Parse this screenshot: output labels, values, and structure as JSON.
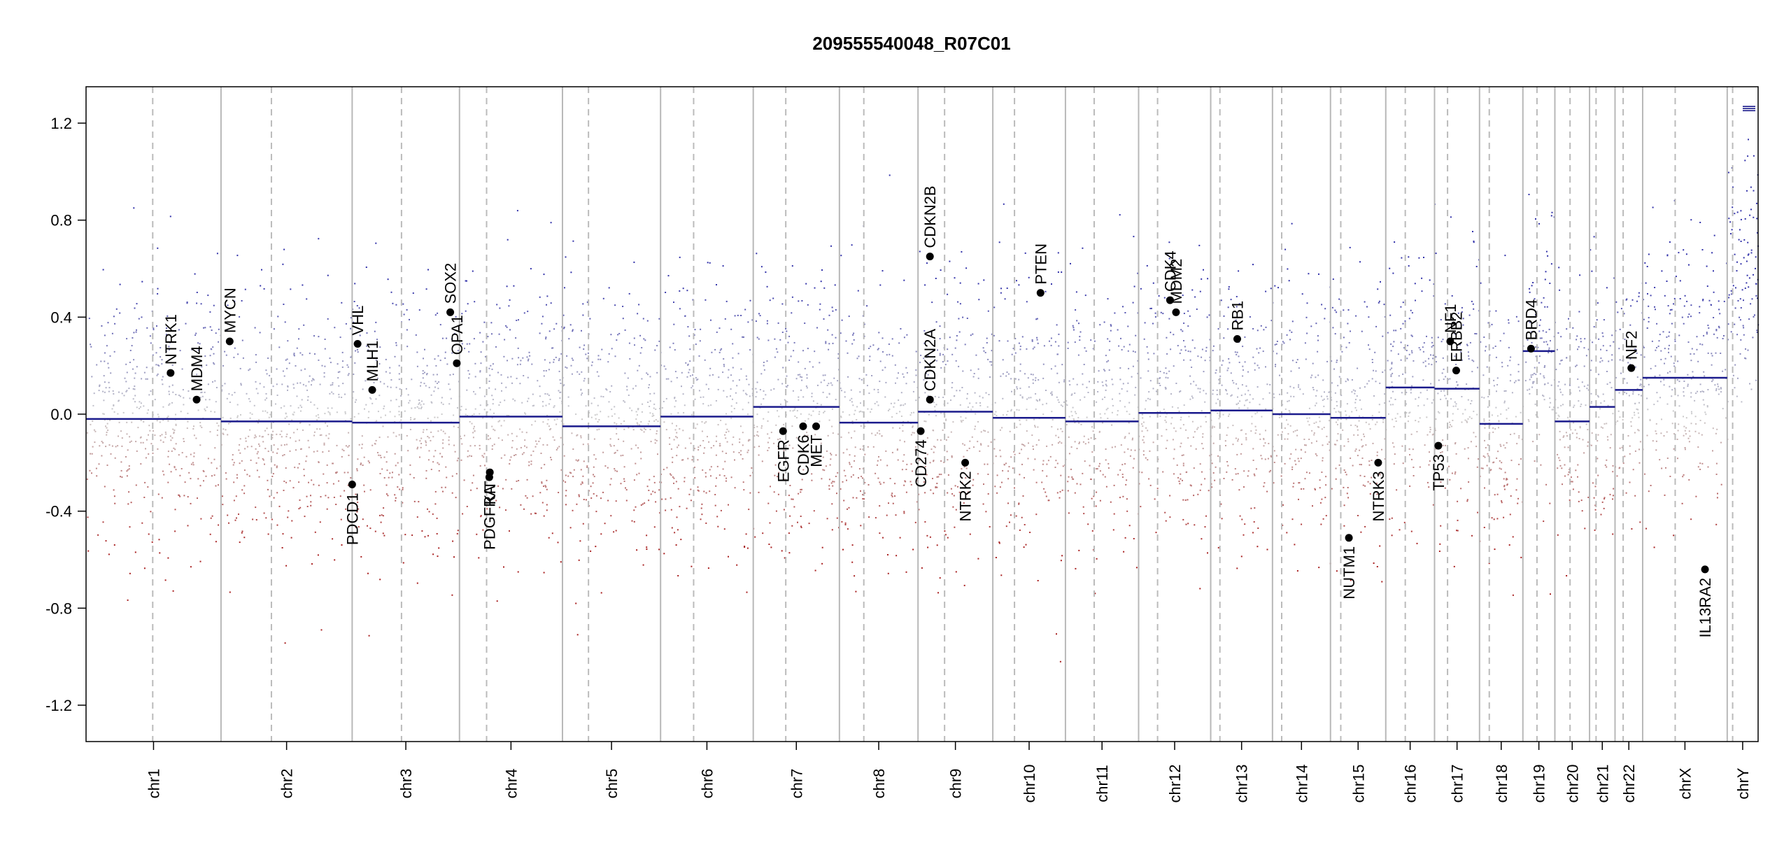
{
  "chart_data": {
    "type": "scatter",
    "title": "209555540048_R07C01",
    "xlabel": "",
    "ylabel": "",
    "ylim": [
      -1.35,
      1.35
    ],
    "y_ticks": [
      -1.2,
      -0.8,
      -0.4,
      0.0,
      0.4,
      0.8,
      1.2
    ],
    "y_tick_labels": [
      "-1.2",
      "-0.8",
      "-0.4",
      "0.0",
      "0.4",
      "0.8",
      "1.2"
    ],
    "grid": false,
    "colors": {
      "gain": "#3333aa",
      "loss": "#aa2222",
      "segment": "#1a1a8c",
      "chrom_boundary": "#b8b8b8",
      "centromere": "#bbbbbb",
      "gene_point": "#000000"
    },
    "chromosomes": [
      {
        "name": "chr1",
        "size": 249,
        "centromere": 123,
        "segments": [
          {
            "start": 0,
            "end": 249,
            "value": -0.02
          }
        ]
      },
      {
        "name": "chr2",
        "size": 242,
        "centromere": 93,
        "segments": [
          {
            "start": 0,
            "end": 242,
            "value": -0.03
          }
        ]
      },
      {
        "name": "chr3",
        "size": 198,
        "centromere": 91,
        "segments": [
          {
            "start": 0,
            "end": 198,
            "value": -0.035
          }
        ]
      },
      {
        "name": "chr4",
        "size": 190,
        "centromere": 50,
        "segments": [
          {
            "start": 0,
            "end": 190,
            "value": -0.01
          }
        ]
      },
      {
        "name": "chr5",
        "size": 181,
        "centromere": 48,
        "segments": [
          {
            "start": 0,
            "end": 181,
            "value": -0.05
          }
        ]
      },
      {
        "name": "chr6",
        "size": 171,
        "centromere": 61,
        "segments": [
          {
            "start": 0,
            "end": 171,
            "value": -0.01
          }
        ]
      },
      {
        "name": "chr7",
        "size": 159,
        "centromere": 60,
        "segments": [
          {
            "start": 0,
            "end": 159,
            "value": 0.03
          }
        ]
      },
      {
        "name": "chr8",
        "size": 145,
        "centromere": 45,
        "segments": [
          {
            "start": 0,
            "end": 145,
            "value": -0.035
          }
        ]
      },
      {
        "name": "chr9",
        "size": 138,
        "centromere": 49,
        "segments": [
          {
            "start": 0,
            "end": 138,
            "value": 0.01
          }
        ]
      },
      {
        "name": "chr10",
        "size": 134,
        "centromere": 40,
        "segments": [
          {
            "start": 0,
            "end": 134,
            "value": -0.015
          }
        ]
      },
      {
        "name": "chr11",
        "size": 135,
        "centromere": 53,
        "segments": [
          {
            "start": 0,
            "end": 135,
            "value": -0.03
          }
        ]
      },
      {
        "name": "chr12",
        "size": 133,
        "centromere": 35,
        "segments": [
          {
            "start": 0,
            "end": 133,
            "value": 0.005
          }
        ]
      },
      {
        "name": "chr13",
        "size": 114,
        "centromere": 17,
        "segments": [
          {
            "start": 0,
            "end": 114,
            "value": 0.015
          }
        ]
      },
      {
        "name": "chr14",
        "size": 107,
        "centromere": 17,
        "segments": [
          {
            "start": 0,
            "end": 107,
            "value": 0.0
          }
        ]
      },
      {
        "name": "chr15",
        "size": 102,
        "centromere": 19,
        "segments": [
          {
            "start": 0,
            "end": 102,
            "value": -0.015
          }
        ]
      },
      {
        "name": "chr16",
        "size": 90,
        "centromere": 36,
        "segments": [
          {
            "start": 0,
            "end": 90,
            "value": 0.11
          }
        ]
      },
      {
        "name": "chr17",
        "size": 83,
        "centromere": 24,
        "segments": [
          {
            "start": 0,
            "end": 83,
            "value": 0.105
          }
        ]
      },
      {
        "name": "chr18",
        "size": 80,
        "centromere": 18,
        "segments": [
          {
            "start": 0,
            "end": 80,
            "value": -0.04
          }
        ]
      },
      {
        "name": "chr19",
        "size": 59,
        "centromere": 26,
        "segments": [
          {
            "start": 0,
            "end": 59,
            "value": 0.26
          }
        ]
      },
      {
        "name": "chr20",
        "size": 64,
        "centromere": 28,
        "segments": [
          {
            "start": 0,
            "end": 64,
            "value": -0.03
          }
        ]
      },
      {
        "name": "chr21",
        "size": 47,
        "centromere": 12,
        "segments": [
          {
            "start": 0,
            "end": 47,
            "value": 0.03
          }
        ]
      },
      {
        "name": "chr22",
        "size": 51,
        "centromere": 15,
        "segments": [
          {
            "start": 0,
            "end": 51,
            "value": 0.1
          }
        ]
      },
      {
        "name": "chrX",
        "size": 156,
        "centromere": 60,
        "segments": [
          {
            "start": 0,
            "end": 156,
            "value": 0.15
          }
        ]
      },
      {
        "name": "chrY",
        "size": 57,
        "centromere": 10,
        "segments": [
          {
            "start": 0,
            "end": 57,
            "value": 1.26
          }
        ]
      }
    ],
    "genes": [
      {
        "name": "NTRK1",
        "chrom": "chr1",
        "pos": 156,
        "value": 0.17
      },
      {
        "name": "MDM4",
        "chrom": "chr1",
        "pos": 204,
        "value": 0.06
      },
      {
        "name": "MYCN",
        "chrom": "chr2",
        "pos": 16,
        "value": 0.3
      },
      {
        "name": "VHL",
        "chrom": "chr3",
        "pos": 10,
        "value": 0.29
      },
      {
        "name": "MLH1",
        "chrom": "chr3",
        "pos": 37,
        "value": 0.1
      },
      {
        "name": "PDCD1",
        "chrom": "chr2",
        "pos": 242,
        "value": -0.29
      },
      {
        "name": "OPA1",
        "chrom": "chr3",
        "pos": 193,
        "value": 0.21
      },
      {
        "name": "SOX2",
        "chrom": "chr3",
        "pos": 181,
        "value": 0.42
      },
      {
        "name": "PDGFRA",
        "chrom": "chr4",
        "pos": 55,
        "value": -0.26
      },
      {
        "name": "KIT",
        "chrom": "chr4",
        "pos": 56,
        "value": -0.24
      },
      {
        "name": "EGFR",
        "chrom": "chr7",
        "pos": 55,
        "value": -0.07
      },
      {
        "name": "CDK6",
        "chrom": "chr7",
        "pos": 92,
        "value": -0.05
      },
      {
        "name": "MET",
        "chrom": "chr7",
        "pos": 116,
        "value": -0.05
      },
      {
        "name": "CD274",
        "chrom": "chr9",
        "pos": 5,
        "value": -0.07
      },
      {
        "name": "CDKN2A",
        "chrom": "chr9",
        "pos": 22,
        "value": 0.06
      },
      {
        "name": "CDKN2B",
        "chrom": "chr9",
        "pos": 22,
        "value": 0.65
      },
      {
        "name": "NTRK2",
        "chrom": "chr9",
        "pos": 87,
        "value": -0.2
      },
      {
        "name": "PTEN",
        "chrom": "chr10",
        "pos": 88,
        "value": 0.5
      },
      {
        "name": "CDK4",
        "chrom": "chr12",
        "pos": 58,
        "value": 0.47
      },
      {
        "name": "MDM2",
        "chrom": "chr12",
        "pos": 69,
        "value": 0.42
      },
      {
        "name": "RB1",
        "chrom": "chr13",
        "pos": 49,
        "value": 0.31
      },
      {
        "name": "NUTM1",
        "chrom": "chr15",
        "pos": 34,
        "value": -0.51
      },
      {
        "name": "NTRK3",
        "chrom": "chr15",
        "pos": 88,
        "value": -0.2
      },
      {
        "name": "TP53",
        "chrom": "chr17",
        "pos": 7,
        "value": -0.13
      },
      {
        "name": "NF1",
        "chrom": "chr17",
        "pos": 29,
        "value": 0.3
      },
      {
        "name": "ERBB2",
        "chrom": "chr17",
        "pos": 40,
        "value": 0.18
      },
      {
        "name": "BRD4",
        "chrom": "chr19",
        "pos": 15,
        "value": 0.27
      },
      {
        "name": "NF2",
        "chrom": "chr22",
        "pos": 30,
        "value": 0.19
      },
      {
        "name": "IL13RA2",
        "chrom": "chrX",
        "pos": 115,
        "value": -0.64
      }
    ]
  }
}
